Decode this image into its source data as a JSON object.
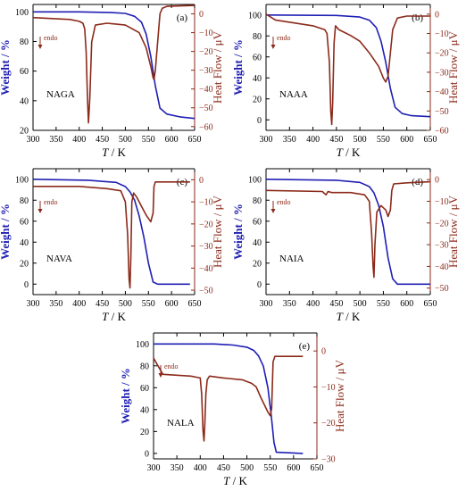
{
  "colors": {
    "weight": "#1f1fb4",
    "heat": "#8b2a1a",
    "axis": "#000000"
  },
  "axis_labels": {
    "x_T": "T",
    "x_unit": " / K",
    "y_left": "Weight / %",
    "y_right": "Heat Flow / μV"
  },
  "endo_label": "endo",
  "chart_data": [
    {
      "type": "line",
      "panel": "(a)",
      "sample": "NAGA",
      "xlim": [
        300,
        650
      ],
      "ylim_left": [
        20,
        105
      ],
      "ylim_right": [
        -62,
        5
      ],
      "x_ticks": [
        "300",
        "350",
        "400",
        "450",
        "500",
        "550",
        "600",
        "650"
      ],
      "yl_ticks": [
        [
          "20",
          "20"
        ],
        [
          "40",
          "40"
        ],
        [
          "60",
          "60"
        ],
        [
          "80",
          "80"
        ],
        [
          "100",
          "100"
        ]
      ],
      "yr_ticks": [
        [
          "0",
          "0"
        ],
        [
          "-10",
          "−10"
        ],
        [
          "-20",
          "−20"
        ],
        [
          "-30",
          "−30"
        ],
        [
          "-40",
          "−40"
        ],
        [
          "-50",
          "−50"
        ],
        [
          "-60",
          "−60"
        ]
      ],
      "series": [
        {
          "axis": "left",
          "x": [
            300,
            400,
            470,
            500,
            520,
            535,
            545,
            555,
            565,
            575,
            590,
            620,
            650
          ],
          "y": [
            100,
            100,
            99.5,
            99,
            97,
            93,
            85,
            70,
            50,
            35,
            31,
            29,
            28
          ]
        },
        {
          "axis": "right",
          "x": [
            300,
            380,
            400,
            408,
            412,
            415,
            418,
            420,
            423,
            427,
            435,
            460,
            500,
            530,
            545,
            555,
            560,
            562,
            565,
            570,
            575,
            580,
            590,
            650
          ],
          "y": [
            -2,
            -3,
            -4,
            -5,
            -8,
            -20,
            -45,
            -58,
            -45,
            -15,
            -6,
            -5,
            -6,
            -10,
            -18,
            -28,
            -34,
            -35,
            -30,
            -15,
            0,
            3,
            4,
            4.5
          ]
        }
      ]
    },
    {
      "type": "line",
      "panel": "(b)",
      "sample": "NAAA",
      "xlim": [
        300,
        650
      ],
      "ylim_left": [
        -10,
        110
      ],
      "ylim_right": [
        -60,
        5
      ],
      "x_ticks": [
        "300",
        "350",
        "400",
        "450",
        "500",
        "550",
        "600",
        "650"
      ],
      "yl_ticks": [
        [
          "0",
          "0"
        ],
        [
          "20",
          "20"
        ],
        [
          "40",
          "40"
        ],
        [
          "60",
          "60"
        ],
        [
          "80",
          "80"
        ],
        [
          "100",
          "100"
        ]
      ],
      "yr_ticks": [
        [
          "0",
          "0"
        ],
        [
          "-10",
          "−10"
        ],
        [
          "-20",
          "−20"
        ],
        [
          "-30",
          "−30"
        ],
        [
          "-40",
          "−40"
        ],
        [
          "-50",
          "−50"
        ],
        [
          "-60",
          "−60"
        ]
      ],
      "series": [
        {
          "axis": "left",
          "x": [
            300,
            450,
            500,
            520,
            535,
            545,
            555,
            565,
            575,
            590,
            610,
            650
          ],
          "y": [
            100,
            99.5,
            98,
            95,
            88,
            75,
            55,
            30,
            12,
            6,
            4,
            3
          ]
        },
        {
          "axis": "right",
          "x": [
            300,
            320,
            400,
            425,
            430,
            435,
            438,
            440,
            442,
            445,
            448,
            455,
            480,
            500,
            520,
            540,
            550,
            555,
            560,
            565,
            570,
            580,
            600,
            650
          ],
          "y": [
            0,
            -3,
            -6,
            -8,
            -10,
            -25,
            -50,
            -57,
            -45,
            -15,
            -6,
            -8,
            -11,
            -14,
            -20,
            -27,
            -33,
            -35,
            -32,
            -20,
            -8,
            -2,
            -1,
            -1
          ]
        }
      ]
    },
    {
      "type": "line",
      "panel": "(c)",
      "sample": "NAVA",
      "xlim": [
        300,
        650
      ],
      "ylim_left": [
        -10,
        110
      ],
      "ylim_right": [
        -52,
        5
      ],
      "x_ticks": [
        "300",
        "350",
        "400",
        "450",
        "500",
        "550",
        "600",
        "650"
      ],
      "yl_ticks": [
        [
          "0",
          "0"
        ],
        [
          "20",
          "20"
        ],
        [
          "40",
          "40"
        ],
        [
          "60",
          "60"
        ],
        [
          "80",
          "80"
        ],
        [
          "100",
          "100"
        ]
      ],
      "yr_ticks": [
        [
          "0",
          "0"
        ],
        [
          "-10",
          "−10"
        ],
        [
          "-20",
          "−20"
        ],
        [
          "-30",
          "−30"
        ],
        [
          "-40",
          "−40"
        ],
        [
          "-50",
          "−50"
        ]
      ],
      "series": [
        {
          "axis": "left",
          "x": [
            300,
            420,
            480,
            500,
            510,
            520,
            530,
            540,
            550,
            560,
            570,
            640
          ],
          "y": [
            100,
            99,
            97,
            93,
            88,
            80,
            65,
            45,
            20,
            2,
            0,
            0
          ]
        },
        {
          "axis": "right",
          "x": [
            300,
            400,
            460,
            490,
            500,
            505,
            508,
            510,
            512,
            514,
            518,
            525,
            535,
            545,
            555,
            560,
            562,
            565,
            580,
            640
          ],
          "y": [
            -3,
            -3,
            -4,
            -5,
            -10,
            -25,
            -45,
            -49,
            -35,
            -10,
            -6,
            -8,
            -12,
            -16,
            -19,
            -15,
            -3,
            -1,
            -1,
            -1
          ]
        }
      ]
    },
    {
      "type": "line",
      "panel": "(d)",
      "sample": "NAIA",
      "xlim": [
        300,
        650
      ],
      "ylim_left": [
        -10,
        110
      ],
      "ylim_right": [
        -53,
        5
      ],
      "x_ticks": [
        "300",
        "350",
        "400",
        "450",
        "500",
        "550",
        "600",
        "650"
      ],
      "yl_ticks": [
        [
          "0",
          "0"
        ],
        [
          "20",
          "20"
        ],
        [
          "40",
          "40"
        ],
        [
          "60",
          "60"
        ],
        [
          "80",
          "80"
        ],
        [
          "100",
          "100"
        ]
      ],
      "yr_ticks": [
        [
          "0",
          "0"
        ],
        [
          "-10",
          "−10"
        ],
        [
          "-20",
          "−20"
        ],
        [
          "-30",
          "−30"
        ],
        [
          "-40",
          "−40"
        ],
        [
          "-50",
          "−50"
        ]
      ],
      "series": [
        {
          "axis": "left",
          "x": [
            300,
            450,
            500,
            520,
            530,
            540,
            550,
            560,
            570,
            580,
            650
          ],
          "y": [
            100,
            99,
            97,
            93,
            87,
            75,
            55,
            25,
            5,
            0,
            0
          ]
        },
        {
          "axis": "right",
          "x": [
            300,
            420,
            425,
            428,
            432,
            440,
            480,
            510,
            520,
            525,
            528,
            530,
            532,
            536,
            545,
            555,
            560,
            565,
            568,
            572,
            600,
            650
          ],
          "y": [
            -5,
            -5.5,
            -6.5,
            -7,
            -5.5,
            -6,
            -6,
            -7,
            -10,
            -25,
            -40,
            -45,
            -30,
            -15,
            -12,
            -14,
            -17,
            -14,
            -5,
            -2,
            -1.5,
            -1
          ]
        }
      ]
    },
    {
      "type": "line",
      "panel": "(e)",
      "sample": "NALA",
      "xlim": [
        300,
        650
      ],
      "ylim_left": [
        -5,
        110
      ],
      "ylim_right": [
        -30,
        5
      ],
      "x_ticks": [
        "300",
        "350",
        "400",
        "450",
        "500",
        "550",
        "600",
        "650"
      ],
      "yl_ticks": [
        [
          "0",
          "0"
        ],
        [
          "20",
          "20"
        ],
        [
          "40",
          "40"
        ],
        [
          "60",
          "60"
        ],
        [
          "80",
          "80"
        ],
        [
          "100",
          "100"
        ]
      ],
      "yr_ticks": [
        [
          "0",
          "0"
        ],
        [
          "-10",
          "−10"
        ],
        [
          "-20",
          "−20"
        ],
        [
          "-30",
          "−30"
        ]
      ],
      "series": [
        {
          "axis": "left",
          "x": [
            300,
            430,
            470,
            500,
            515,
            525,
            535,
            545,
            552,
            558,
            563,
            620
          ],
          "y": [
            100,
            100,
            99,
            97,
            94,
            89,
            80,
            60,
            35,
            10,
            1,
            0
          ]
        },
        {
          "axis": "right",
          "x": [
            300,
            320,
            380,
            400,
            403,
            406,
            408,
            410,
            412,
            415,
            420,
            450,
            490,
            510,
            520,
            530,
            545,
            550,
            553,
            556,
            560,
            620
          ],
          "y": [
            -2,
            -6.5,
            -7,
            -7.5,
            -12,
            -22,
            -25,
            -20,
            -12,
            -8,
            -7,
            -7.5,
            -8,
            -9,
            -10,
            -13,
            -17,
            -18,
            -16,
            -3,
            -1.5,
            -1.5
          ]
        }
      ]
    }
  ]
}
